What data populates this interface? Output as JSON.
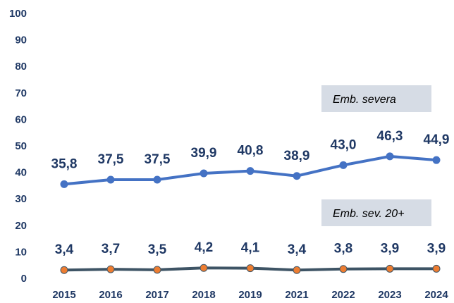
{
  "chart_data": {
    "type": "line",
    "categories": [
      "2015",
      "2016",
      "2017",
      "2018",
      "2019",
      "2021",
      "2022",
      "2023",
      "2024"
    ],
    "series": [
      {
        "name": "Emb. severa",
        "color": "#4472c4",
        "marker_color": "#4472c4",
        "values": [
          35.8,
          37.5,
          37.5,
          39.9,
          40.8,
          38.9,
          43.0,
          46.3,
          44.9
        ],
        "value_labels": [
          "35,8",
          "37,5",
          "37,5",
          "39,9",
          "40,8",
          "38,9",
          "43,0",
          "46,3",
          "44,9"
        ]
      },
      {
        "name": "Emb. sev. 20+",
        "color": "#3e5465",
        "marker_color": "#ed7d31",
        "values": [
          3.4,
          3.7,
          3.5,
          4.2,
          4.1,
          3.4,
          3.8,
          3.9,
          3.9
        ],
        "value_labels": [
          "3,4",
          "3,7",
          "3,5",
          "4,2",
          "4,1",
          "3,4",
          "3,8",
          "3,9",
          "3,9"
        ]
      }
    ],
    "ylim": [
      0,
      100
    ],
    "yticks": [
      0,
      10,
      20,
      30,
      40,
      50,
      60,
      70,
      80,
      90,
      100
    ],
    "grid": false
  }
}
